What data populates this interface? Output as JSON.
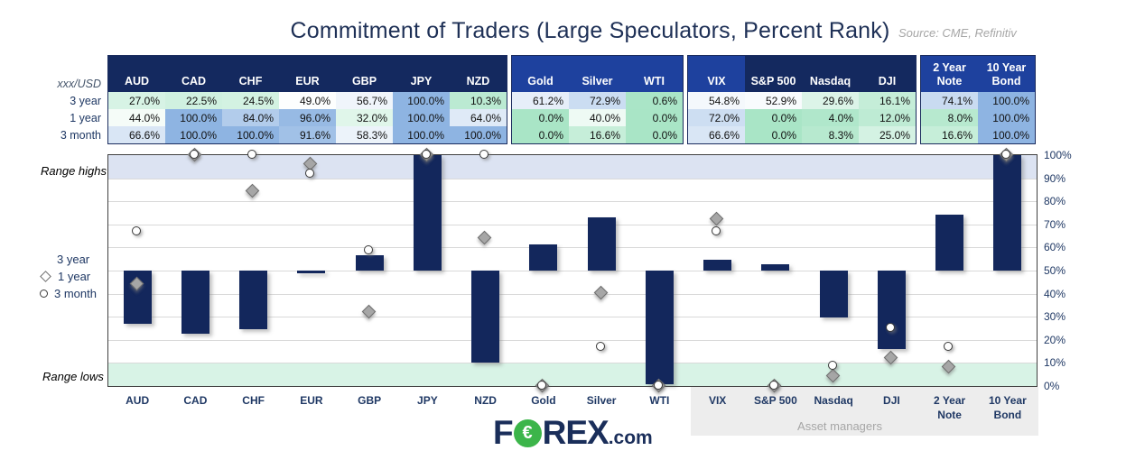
{
  "title": "Commitment of Traders (Large Speculators, Percent Rank)",
  "source": "Source: CME, Refinitiv",
  "logo": {
    "f": "F",
    "o_glyph": "€",
    "rex": "REX",
    "tld": ".com"
  },
  "table": {
    "corner_label": "xxx/USD",
    "row_labels": [
      "3 year",
      "1 year",
      "3 month"
    ]
  },
  "chart_data": {
    "type": "bar",
    "title": "Commitment of Traders (Large Speculators, Percent Rank)",
    "categories": [
      "AUD",
      "CAD",
      "CHF",
      "EUR",
      "GBP",
      "JPY",
      "NZD",
      "Gold",
      "Silver",
      "WTI",
      "VIX",
      "S&P 500",
      "Nasdaq",
      "DJI",
      "2 Year Note",
      "10 Year Bond"
    ],
    "header_styles": [
      "dark",
      "dark",
      "dark",
      "dark",
      "dark",
      "dark",
      "dark",
      "bright",
      "bright",
      "bright",
      "bright",
      "dark",
      "dark",
      "dark",
      "bright",
      "bright"
    ],
    "block_ends": [
      6,
      9,
      13
    ],
    "series": [
      {
        "name": "3 year",
        "marker": "bar",
        "baseline": 50,
        "values": [
          27.0,
          22.5,
          24.5,
          49.0,
          56.7,
          100.0,
          10.3,
          61.2,
          72.9,
          0.6,
          54.8,
          52.9,
          29.6,
          16.1,
          74.1,
          100.0
        ]
      },
      {
        "name": "1 year",
        "marker": "diamond",
        "values": [
          44.0,
          100.0,
          84.0,
          96.0,
          32.0,
          100.0,
          64.0,
          0.0,
          40.0,
          0.0,
          72.0,
          0.0,
          4.0,
          12.0,
          8.0,
          100.0
        ]
      },
      {
        "name": "3 month",
        "marker": "circle",
        "values": [
          66.6,
          100.0,
          100.0,
          91.6,
          58.3,
          100.0,
          100.0,
          0.0,
          16.6,
          0.0,
          66.6,
          0.0,
          8.3,
          25.0,
          16.6,
          100.0
        ]
      }
    ],
    "y_ticks": [
      "100%",
      "90%",
      "80%",
      "70%",
      "60%",
      "50%",
      "40%",
      "30%",
      "20%",
      "10%",
      "0%"
    ],
    "ylim": [
      0,
      100
    ],
    "grid": true,
    "legend_position": "left",
    "range_high_label": "Range highs",
    "range_low_label": "Range lows",
    "annotation_asset_managers": "Asset managers",
    "colors": {
      "bar": "#13275c",
      "diamond": "#a6a6a6",
      "circle": "#ffffff",
      "heat_high": "#8eb4e2",
      "heat_low": "#a9e5c6",
      "header_dark": "#14295f",
      "header_bright": "#1e419e",
      "range_high_band": "#dce3f2",
      "range_low_band": "#d8f3e6",
      "range_high_text": "#8095cc",
      "range_low_text": "#52c695",
      "navy_text": "#1f3864",
      "logo_green": "#3cb54a"
    }
  }
}
